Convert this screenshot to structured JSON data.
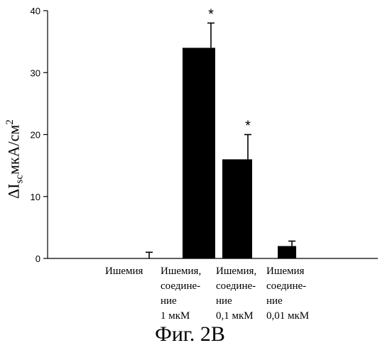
{
  "chart_data": {
    "type": "bar",
    "categories": [
      "",
      "Ишемия",
      "Ишемия, соедине- ние 1 мкМ",
      "Ишемия, соедине- ние 0,1 мкМ",
      "Ишемия соедине- ние 0,01 мкМ"
    ],
    "category_lines": [
      [],
      [
        "Ишемия"
      ],
      [
        "Ишемия,",
        "соедине-",
        "ние",
        "1 мкМ"
      ],
      [
        "Ишемия,",
        "соедине-",
        "ние",
        "0,1 мкМ"
      ],
      [
        "Ишемия",
        "соедине-",
        "ние",
        "0,01 мкМ"
      ]
    ],
    "values": [
      0,
      0,
      34,
      16,
      2
    ],
    "errors": [
      0,
      1,
      4,
      4,
      0.8
    ],
    "significance": [
      "",
      "",
      "*",
      "*",
      ""
    ],
    "ylim": [
      0,
      40
    ],
    "yticks": [
      "0",
      "10",
      "20",
      "30",
      "40"
    ],
    "ylabel": "ΔIscмкА/см2",
    "ylabel_parts": {
      "delta": "ΔI",
      "sub": "sc",
      "unit": "мкА/см",
      "sup": "2"
    },
    "title": "",
    "xlabel": "",
    "bar_color": "#000000",
    "grid": false
  },
  "caption": "Фиг. 2В"
}
